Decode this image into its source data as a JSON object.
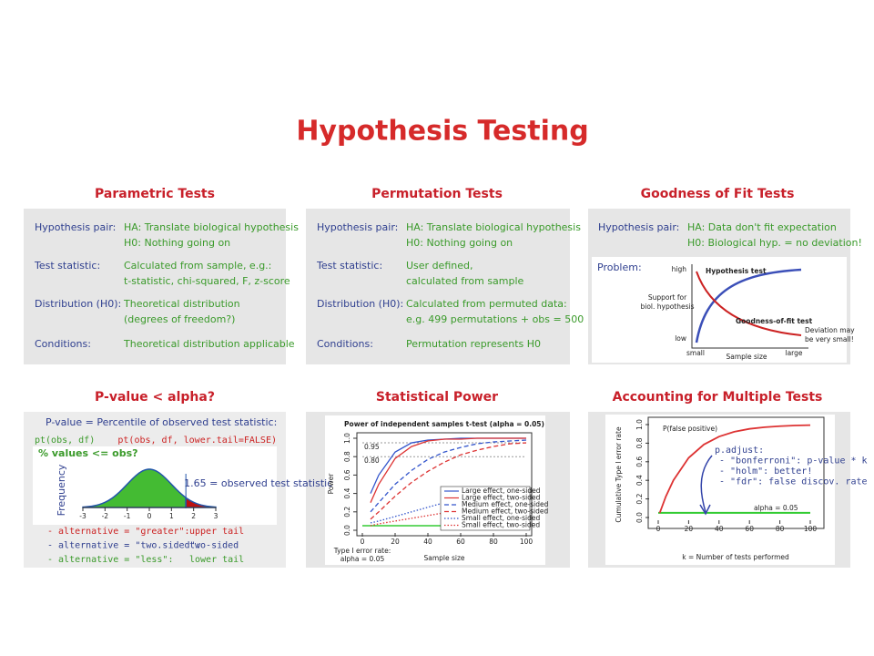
{
  "title": "Hypothesis Testing",
  "panels": [
    {
      "heading": "Parametric Tests",
      "rows": [
        {
          "label": "Hypothesis pair:",
          "lines": [
            "HA: Translate biological hypothesis",
            "H0: Nothing going on"
          ]
        },
        {
          "label": "Test statistic:",
          "lines": [
            "Calculated from sample, e.g.:",
            "t-statistic, chi-squared, F, z-score"
          ]
        },
        {
          "label": "Distribution (H0):",
          "lines": [
            "Theoretical distribution",
            "(degrees of freedom?)"
          ]
        },
        {
          "label": "Conditions:",
          "lines": [
            "Theoretical distribution applicable"
          ]
        }
      ]
    },
    {
      "heading": "Permutation Tests",
      "rows": [
        {
          "label": "Hypothesis pair:",
          "lines": [
            "HA: Translate biological hypothesis",
            "H0: Nothing going on"
          ]
        },
        {
          "label": "Test statistic:",
          "lines": [
            "User defined,",
            "calculated from sample"
          ]
        },
        {
          "label": "Distribution (H0):",
          "lines": [
            "Calculated from permuted data:",
            "e.g. 499 permutations + obs = 500"
          ]
        },
        {
          "label": "Conditions:",
          "lines": [
            "Permutation represents H0"
          ]
        }
      ]
    },
    {
      "heading": "Goodness of Fit Tests",
      "rows": [
        {
          "label": "Hypothesis pair:",
          "lines": [
            "HA: Data don't fit expectation",
            "H0: Biological hyp. = no deviation!"
          ]
        }
      ],
      "figure": {
        "problem": "Problem:",
        "high": "high",
        "low": "low",
        "y_label": [
          "Support for",
          "biol. hypothesis"
        ],
        "curve_a": "Hypothesis test",
        "curve_b": "Goodness-of-fit test",
        "note": [
          "Deviation may",
          "be very small!"
        ],
        "x_small": "small",
        "x_large": "large",
        "x_label": "Sample size"
      }
    },
    {
      "heading": "P-value < alpha?",
      "statement": "P-value = Percentile of observed test statistic:",
      "lower_call": "pt(obs, df)",
      "upper_call": "pt(obs, df, lower.tail=FALSE)",
      "question": "% values <= obs?",
      "y_label": "Frequency",
      "observed": {
        "value": 1.65,
        "label": "1.65 = observed test statistic"
      },
      "xticks": [
        -3,
        -2,
        -1,
        0,
        1,
        2,
        3
      ],
      "alternatives": [
        [
          "- alternative = \"greater\":",
          "upper tail"
        ],
        [
          "- alternative = \"two.sided\":",
          "two-sided"
        ],
        [
          "- alternative = \"less\":",
          "lower tail"
        ]
      ]
    },
    {
      "heading": "Statistical Power"
    },
    {
      "heading": "Accounting for Multiple Tests"
    }
  ],
  "power_chart": {
    "type": "line",
    "title": "Power of independent samples t-test (alpha = 0.05)",
    "x_label": "Sample size",
    "y_label": "Power",
    "x": [
      5,
      10,
      20,
      30,
      40,
      50,
      60,
      70,
      80,
      90,
      100
    ],
    "series": [
      {
        "name": "Large effect, one-sided",
        "color": "#3355cc",
        "dash": "solid",
        "values": [
          0.4,
          0.6,
          0.85,
          0.95,
          0.98,
          0.99,
          1,
          1,
          1,
          1,
          1
        ]
      },
      {
        "name": "Large effect, two-sided",
        "color": "#dd3333",
        "dash": "solid",
        "values": [
          0.3,
          0.5,
          0.78,
          0.91,
          0.97,
          0.99,
          0.99,
          1,
          1,
          1,
          1
        ]
      },
      {
        "name": "Medium effect, one-sided",
        "color": "#3355cc",
        "dash": "dashed",
        "values": [
          0.2,
          0.3,
          0.5,
          0.65,
          0.77,
          0.85,
          0.9,
          0.94,
          0.96,
          0.97,
          0.98
        ]
      },
      {
        "name": "Medium effect, two-sided",
        "color": "#dd3333",
        "dash": "dashed",
        "values": [
          0.12,
          0.2,
          0.37,
          0.52,
          0.64,
          0.74,
          0.82,
          0.87,
          0.91,
          0.94,
          0.95
        ]
      },
      {
        "name": "Small effect, one-sided",
        "color": "#3355cc",
        "dash": "dotted",
        "values": [
          0.08,
          0.1,
          0.15,
          0.2,
          0.25,
          0.3,
          0.35,
          0.38,
          0.41,
          0.43,
          0.45
        ]
      },
      {
        "name": "Small effect, two-sided",
        "color": "#dd3333",
        "dash": "dotted",
        "values": [
          0.05,
          0.07,
          0.1,
          0.13,
          0.16,
          0.19,
          0.22,
          0.25,
          0.27,
          0.29,
          0.31
        ]
      }
    ],
    "type1_rate": 0.05,
    "type1_label": [
      "Type I error rate:",
      "alpha = 0.05"
    ],
    "reference_lines": [
      {
        "value": 0.95,
        "label": "0.95"
      },
      {
        "value": 0.8,
        "label": "0.80"
      }
    ],
    "xlim": [
      0,
      100
    ],
    "xticks": [
      0,
      20,
      40,
      60,
      80,
      100
    ],
    "ylim": [
      0,
      1
    ],
    "yticks": [
      {
        "value": 0,
        "label": "0.0"
      },
      {
        "value": 0.2,
        "label": "0.2"
      },
      {
        "value": 0.4,
        "label": "0.4"
      },
      {
        "value": 0.6,
        "label": "0.6"
      },
      {
        "value": 0.8,
        "label": "0.8"
      },
      {
        "value": 1,
        "label": "1.0"
      }
    ]
  },
  "multiple_tests_chart": {
    "type": "line",
    "x_label": "k = Number of tests performed",
    "y_label": "Cumulative Type I error rate",
    "x": [
      1,
      5,
      10,
      20,
      30,
      40,
      50,
      60,
      70,
      80,
      90,
      100
    ],
    "values": [
      0.05,
      0.226,
      0.401,
      0.642,
      0.785,
      0.871,
      0.923,
      0.954,
      0.972,
      0.983,
      0.99,
      0.994
    ],
    "color": "#dd3333",
    "curve_label": "P(false positive)",
    "alpha": 0.05,
    "alpha_label": "alpha = 0.05",
    "alpha_color": "#33cc33",
    "notes": [
      "p.adjust:",
      "- \"bonferroni\": p-value * k",
      "- \"holm\": better!",
      "- \"fdr\": false discov. rate"
    ],
    "xlim": [
      0,
      100
    ],
    "xticks": [
      0,
      20,
      40,
      60,
      80,
      100
    ],
    "ylim": [
      0,
      1
    ],
    "yticks": [
      {
        "value": 0,
        "label": "0.0"
      },
      {
        "value": 0.2,
        "label": "0.2"
      },
      {
        "value": 0.4,
        "label": "0.4"
      },
      {
        "value": 0.6,
        "label": "0.6"
      },
      {
        "value": 0.8,
        "label": "0.8"
      },
      {
        "value": 1,
        "label": "1.0"
      }
    ]
  }
}
